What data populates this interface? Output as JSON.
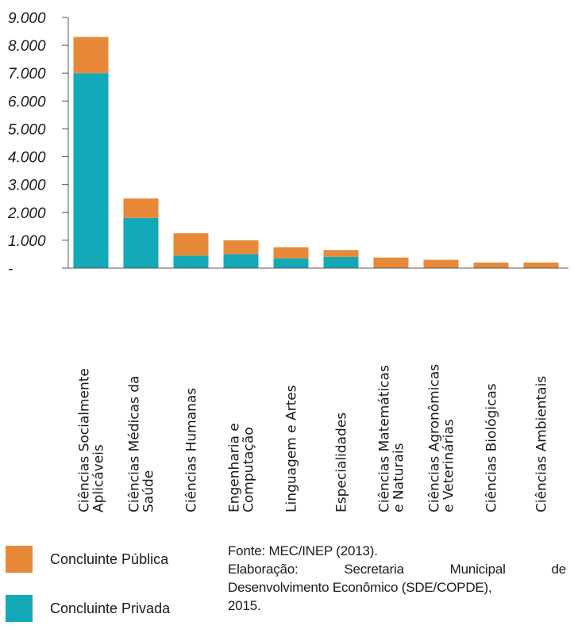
{
  "colors": {
    "publica": "#E8893A",
    "privada": "#13A9B8",
    "axis": "#555555",
    "text": "#1a1a1a"
  },
  "chart_data": {
    "type": "bar",
    "stacked": true,
    "categories": [
      [
        "Ciências Socialmente",
        "Aplicáveis"
      ],
      [
        "Ciências Médicas da",
        "Saúde"
      ],
      [
        "Ciências Humanas"
      ],
      [
        "Engenharia e",
        "Computação"
      ],
      [
        "Linguagem e Artes"
      ],
      [
        "Especialidades"
      ],
      [
        "Ciências Matemáticas",
        "e Naturais"
      ],
      [
        "Ciências Agronômicas",
        "e Veterinárias"
      ],
      [
        "Ciências Biológicas"
      ],
      [
        "Ciências Ambientais"
      ]
    ],
    "series": [
      {
        "name": "Concluinte Privada",
        "color": "#13A9B8",
        "values": [
          7000,
          1800,
          450,
          500,
          350,
          400,
          0,
          0,
          0,
          0
        ]
      },
      {
        "name": "Concluinte Pública",
        "color": "#E8893A",
        "values": [
          1300,
          700,
          800,
          500,
          400,
          250,
          380,
          300,
          200,
          200
        ]
      }
    ],
    "yticks": [
      "-",
      "1.000",
      "2.000",
      "3.000",
      "4.000",
      "5.000",
      "6.000",
      "7.000",
      "8.000",
      "9.000"
    ],
    "ylim": [
      0,
      9000
    ],
    "grid": false,
    "legend_position": "bottom-left"
  },
  "legend": {
    "items": [
      {
        "label": "Concluinte Pública"
      },
      {
        "label": "Concluinte Privada"
      }
    ]
  },
  "source": {
    "fonte": "Fonte: MEC/INEP (2013).",
    "elaboracao_prefix": "Elaboração:",
    "elaboracao_words": [
      "Secretaria",
      "Municipal",
      "de"
    ],
    "line3": "Desenvolvimento Econômico (SDE/COPDE),",
    "line4": "2015."
  }
}
